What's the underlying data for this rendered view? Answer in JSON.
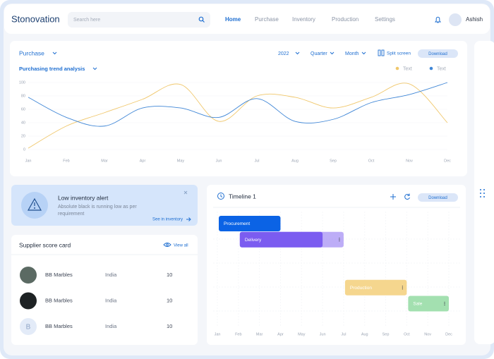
{
  "header": {
    "logo": "Stonovation",
    "search_placeholder": "Search here",
    "nav": [
      "Home",
      "Purchase",
      "Inventory",
      "Production",
      "Settings"
    ],
    "user": "Ashish"
  },
  "purchase_panel": {
    "title": "Purchase",
    "filters": [
      "2022",
      "Quarter",
      "Month"
    ],
    "split_screen": "Split screen",
    "download": "Download"
  },
  "chart_data": {
    "type": "line",
    "title": "Purchasing trend analysis",
    "categories": [
      "Jan",
      "Feb",
      "Mar",
      "Apr",
      "May",
      "Jun",
      "Jul",
      "Aug",
      "Sep",
      "Oct",
      "Nov",
      "Dec"
    ],
    "series": [
      {
        "name": "Text",
        "color": "#f0c76b",
        "values": [
          2,
          35,
          55,
          75,
          97,
          42,
          80,
          78,
          62,
          78,
          98,
          40
        ]
      },
      {
        "name": "Text",
        "color": "#3f86d6",
        "values": [
          78,
          48,
          35,
          62,
          62,
          48,
          76,
          42,
          45,
          70,
          82,
          100
        ]
      }
    ],
    "ylim": [
      0,
      100
    ],
    "yticks": [
      0,
      20,
      40,
      60,
      80,
      100
    ],
    "grid": true
  },
  "alert": {
    "title": "Low inventory alert",
    "message": "Absolute black is running low as per requirement",
    "link": "See in inventory"
  },
  "supplier_card": {
    "title": "Supplier score card",
    "view_all": "View all",
    "rows": [
      {
        "name": "BB Marbles",
        "country": "India",
        "score": "10"
      },
      {
        "name": "BB Marbles",
        "country": "India",
        "score": "10"
      },
      {
        "name": "BB Marbles",
        "country": "India",
        "score": "10",
        "initial": "B"
      }
    ]
  },
  "timeline": {
    "title": "Timeline 1",
    "download": "Download",
    "categories": [
      "Jan",
      "Feb",
      "Mar",
      "Apr",
      "May",
      "Jun",
      "Jul",
      "Aug",
      "Sep",
      "Oct",
      "Nov",
      "Dec"
    ],
    "tasks": [
      {
        "name": "Procurement",
        "start": 0,
        "end": 3,
        "color": "#0b63e5"
      },
      {
        "name": "Delivery",
        "start": 1,
        "end": 6,
        "progress_end": 5,
        "color": "#7b5cf0"
      },
      {
        "name": "Production",
        "start": 6,
        "end": 9,
        "color": "#f5d68e"
      },
      {
        "name": "Sale",
        "start": 9,
        "end": 11,
        "color": "#a3e0b0"
      }
    ]
  }
}
